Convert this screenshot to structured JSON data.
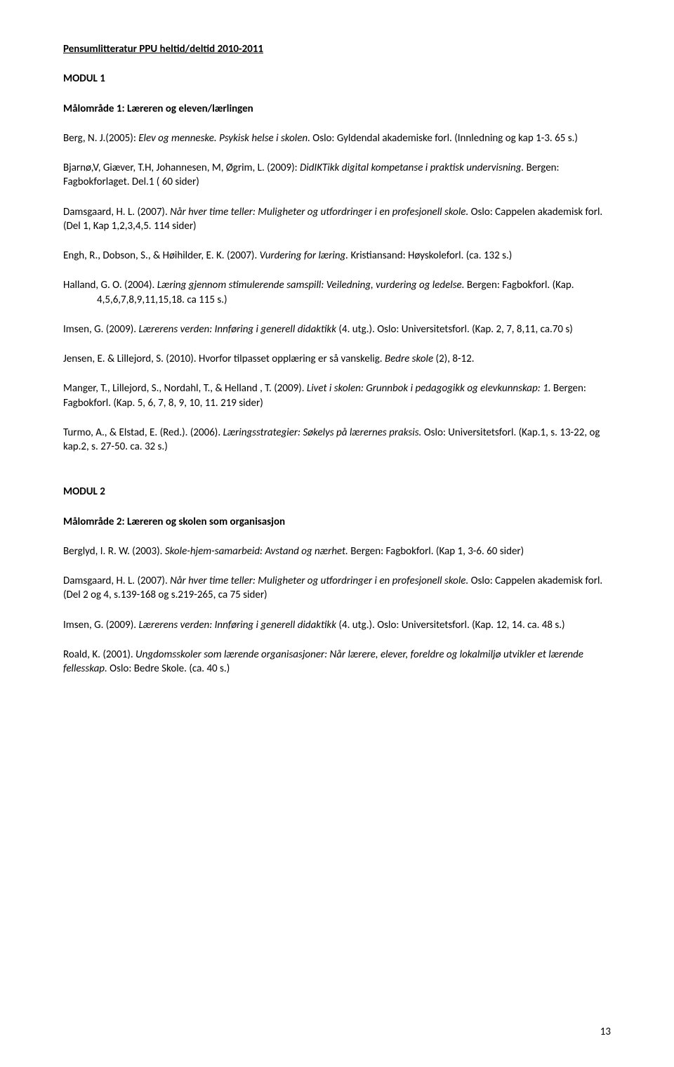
{
  "title": "Pensumlitteratur PPU heltid/deltid 2010-2011",
  "modul1": {
    "heading": "MODUL 1",
    "subhead": "Målområde 1: Læreren og eleven/lærlingen",
    "e1": {
      "a": "Berg, N. J.(2005): ",
      "b": "Elev og menneske. Psykisk helse i skolen.",
      "c": " Oslo: Gyldendal akademiske forl. (Innledning og kap 1-3. 65 s.)"
    },
    "e2": {
      "a": "Bjarnø,V, Giæver, T.H, Johannesen, M, Øgrim, L. (2009): ",
      "b": "DidIKTikk digital kompetanse i praktisk undervisning.",
      "c": " Bergen: Fagbokforlaget. Del.1 ( 60 sider)"
    },
    "e3": {
      "a": "Damsgaard, H. L. (2007). ",
      "b": "Når hver time teller: Muligheter og utfordringer i en profesjonell skole.",
      "c": " Oslo: Cappelen akademisk forl. (Del 1, Kap 1,2,3,4,5. 114 sider)"
    },
    "e4": {
      "a": "Engh, R., Dobson, S., & Høihilder, E. K. (2007). ",
      "b": "Vurdering for læring.",
      "c": " Kristiansand: Høyskoleforl. (ca. 132 s.)"
    },
    "e5": {
      "a": "Halland, G. O. (2004). ",
      "b": "Læring gjennom stimulerende samspill: Veiledning, vurdering og ledelse.",
      "c": " Bergen: Fagbokforl. (Kap. 4,5,6,7,8,9,11,15,18. ca 115 s.)"
    },
    "e6": {
      "a": "Imsen, G. (2009). ",
      "b": "Lærerens verden: Innføring i generell didaktikk",
      "c": " (4. utg.). Oslo: Universitetsforl. (Kap. 2, 7, 8,11, ca.70 s)"
    },
    "e7": {
      "a": "Jensen, E. & Lillejord, S. (2010). Hvorfor tilpasset opplæring er så vanskelig. ",
      "b": "Bedre skole",
      "c": " (2), 8-12."
    },
    "e8": {
      "a": "Manger, T., Lillejord, S., Nordahl, T., & Helland , T. (2009). ",
      "b": "Livet i skolen: Grunnbok i pedagogikk og elevkunnskap: 1.",
      "c": " Bergen: Fagbokforl. (Kap. 5, 6, 7, 8, 9, 10, 11. 219 sider)"
    },
    "e9": {
      "a": "Turmo, A., & Elstad, E. (Red.). (2006). ",
      "b": "Læringsstrategier: Søkelys på lærernes praksis.",
      "c": " Oslo: Universitetsforl. (Kap.1, s. 13-22, og kap.2, s. 27-50. ca. 32 s.)"
    }
  },
  "modul2": {
    "heading": "MODUL 2",
    "subhead": "Målområde 2: Læreren og skolen som organisasjon",
    "e1": {
      "a": "Berglyd, I. R. W. (2003). ",
      "b": "Skole-hjem-samarbeid: Avstand og nærhet.",
      "c": " Bergen: Fagbokforl. (Kap 1, 3-6. 60 sider)"
    },
    "e2": {
      "a": "Damsgaard, H. L. (2007). ",
      "b": "Når hver time teller: Muligheter og utfordringer i en profesjonell skole.",
      "c": " Oslo: Cappelen akademisk forl. (Del 2 og 4, s.139-168 og s.219-265, ca 75 sider)"
    },
    "e3": {
      "a": "Imsen, G. (2009). ",
      "b": "Lærerens verden: Innføring i generell didaktikk",
      "c": " (4. utg.). Oslo: Universitetsforl. (Kap. 12, 14. ca. 48 s.)"
    },
    "e4": {
      "a": "Roald, K. (2001). ",
      "b": "Ungdomsskoler som lærende organisasjoner: Når lærere, elever, foreldre og lokalmiljø utvikler et lærende fellesskap.",
      "c": " Oslo: Bedre Skole. (ca. 40 s.)"
    }
  },
  "pagenum": "13"
}
